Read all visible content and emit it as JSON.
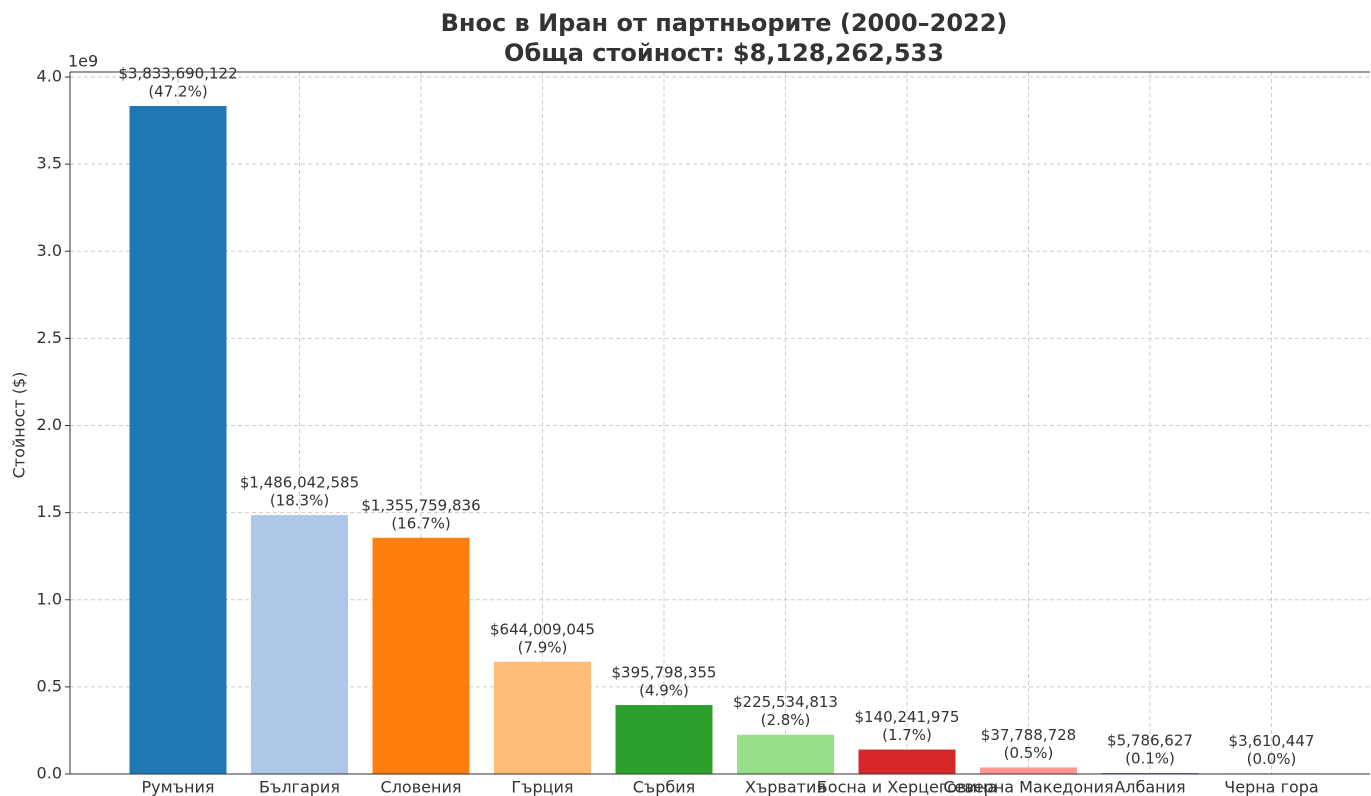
{
  "chart_data": {
    "type": "bar",
    "title": "Внос в Иран от партньорите (2000–2022)",
    "subtitle": "Обща стойност: $8,128,262,533",
    "y_label": "Стойност ($)",
    "y_offset_label": "1e9",
    "categories": [
      "Румъния",
      "България",
      "Словения",
      "Гърция",
      "Сърбия",
      "Хърватия",
      "Босна и Херцеговина",
      "Северна Македония",
      "Албания",
      "Черна гора"
    ],
    "values": [
      3833690122,
      1486042585,
      1355759836,
      644009045,
      395798355,
      225534813,
      140241975,
      37788728,
      5786627,
      3610447
    ],
    "value_labels": [
      "$3,833,690,122",
      "$1,486,042,585",
      "$1,355,759,836",
      "$644,009,045",
      "$395,798,355",
      "$225,534,813",
      "$140,241,975",
      "$37,788,728",
      "$5,786,627",
      "$3,610,447"
    ],
    "share_labels": [
      "(47.2%)",
      "(18.3%)",
      "(16.7%)",
      "(7.9%)",
      "(4.9%)",
      "(2.8%)",
      "(1.7%)",
      "(0.5%)",
      "(0.1%)",
      "(0.0%)"
    ],
    "colors": [
      "#1f77b4",
      "#aec7e8",
      "#ff7f0e",
      "#ffbb78",
      "#2ca02c",
      "#98df8a",
      "#d62728",
      "#ff9896",
      "#9467bd",
      "#c5b0d5"
    ],
    "ylim": [
      0,
      4000000000
    ],
    "yticks": [
      {
        "value": 0,
        "label": "0.0"
      },
      {
        "value": 500000000,
        "label": "0.5"
      },
      {
        "value": 1000000000,
        "label": "1.0"
      },
      {
        "value": 1500000000,
        "label": "1.5"
      },
      {
        "value": 2000000000,
        "label": "2.0"
      },
      {
        "value": 2500000000,
        "label": "2.5"
      },
      {
        "value": 3000000000,
        "label": "3.0"
      },
      {
        "value": 3500000000,
        "label": "3.5"
      },
      {
        "value": 4000000000,
        "label": "4.0"
      }
    ],
    "grid": true
  }
}
